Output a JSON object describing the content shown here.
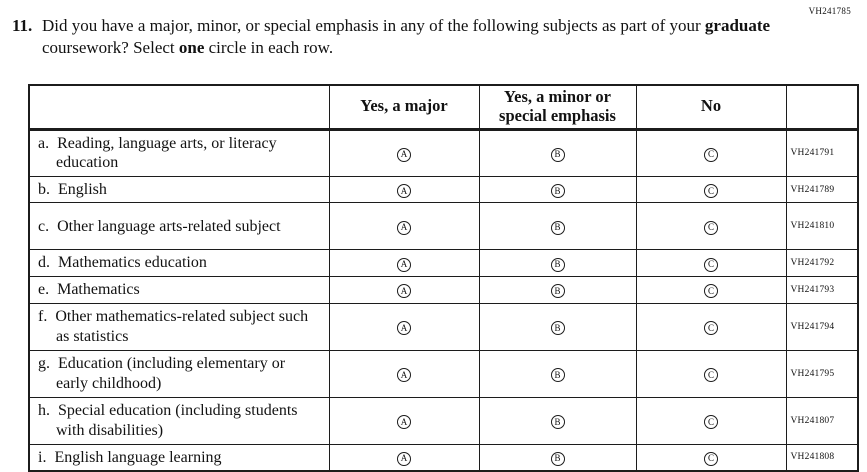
{
  "page": {
    "form_code": "VH241785"
  },
  "question": {
    "number": "11.",
    "t1": "Did you have a major, minor, or special emphasis in any of the following subjects as part of your ",
    "b1": "graduate",
    "t2": " coursework? Select ",
    "b2": "one",
    "t3": " circle in each row."
  },
  "table": {
    "col_headers": {
      "major": "Yes, a major",
      "minor": "Yes, a minor or special emphasis",
      "no": "No"
    },
    "options": [
      "A",
      "B",
      "C"
    ],
    "rows": [
      {
        "label": "a.  Reading, language arts, or literacy education",
        "code": "VH241791"
      },
      {
        "label": "b.  English",
        "code": "VH241789"
      },
      {
        "label": "c.  Other language arts-related subject",
        "code": "VH241810"
      },
      {
        "label": "d.  Mathematics education",
        "code": "VH241792"
      },
      {
        "label": "e.  Mathematics",
        "code": "VH241793"
      },
      {
        "label": "f.  Other mathematics-related subject such as statistics",
        "code": "VH241794"
      },
      {
        "label": "g.  Education (including elementary or early childhood)",
        "code": "VH241795"
      },
      {
        "label": "h.  Special education (including students with disabilities)",
        "code": "VH241807"
      },
      {
        "label": "i.  English language learning",
        "code": "VH241808"
      }
    ]
  }
}
